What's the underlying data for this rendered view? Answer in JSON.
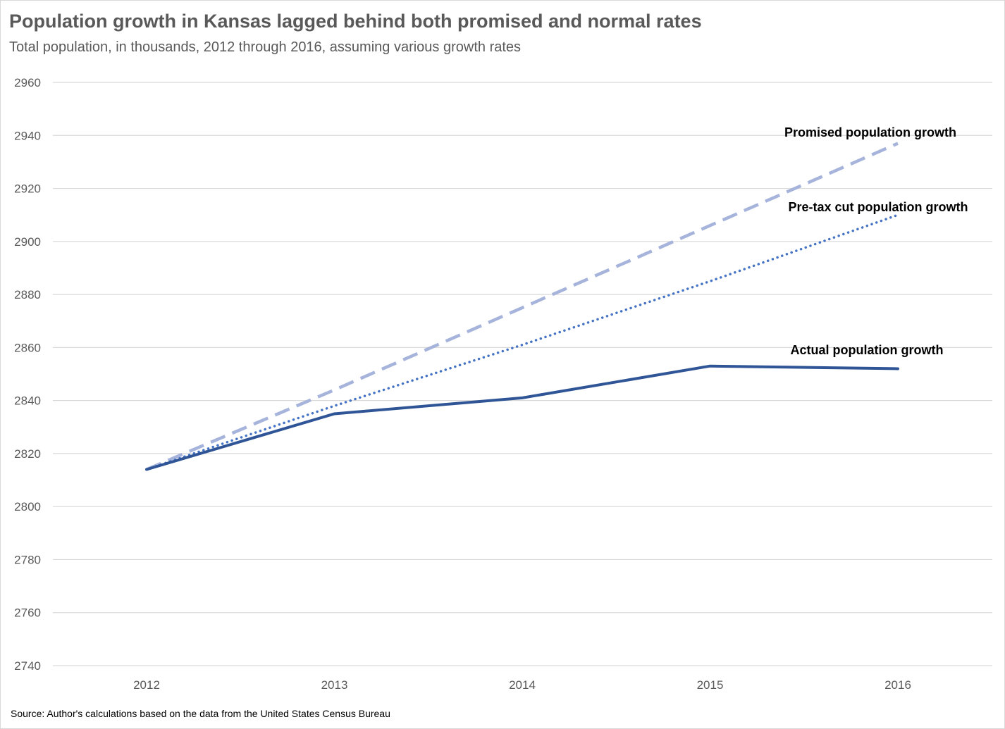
{
  "chart_data": {
    "type": "line",
    "title": "Population growth in Kansas lagged behind both promised and normal rates",
    "subtitle": "Total population, in thousands, 2012 through 2016, assuming various growth rates",
    "source": "Source: Author's calculations based on the data from the United States Census Bureau",
    "categories": [
      "2012",
      "2013",
      "2014",
      "2015",
      "2016"
    ],
    "ylim": [
      2740,
      2960
    ],
    "yticks": [
      "2740",
      "2760",
      "2780",
      "2800",
      "2820",
      "2840",
      "2860",
      "2880",
      "2900",
      "2920",
      "2940",
      "2960"
    ],
    "grid": true,
    "series": [
      {
        "name": "Promised population growth",
        "values": [
          2814,
          2844,
          2875,
          2906,
          2937
        ],
        "style": "dashed",
        "color": "#a6b4dc"
      },
      {
        "name": "Pre-tax cut population growth",
        "values": [
          2814,
          2838,
          2861,
          2885,
          2910
        ],
        "style": "dotted",
        "color": "#4472c4"
      },
      {
        "name": "Actual population growth",
        "values": [
          2814,
          2835,
          2841,
          2853,
          2852
        ],
        "style": "solid",
        "color": "#2f5597"
      }
    ]
  }
}
